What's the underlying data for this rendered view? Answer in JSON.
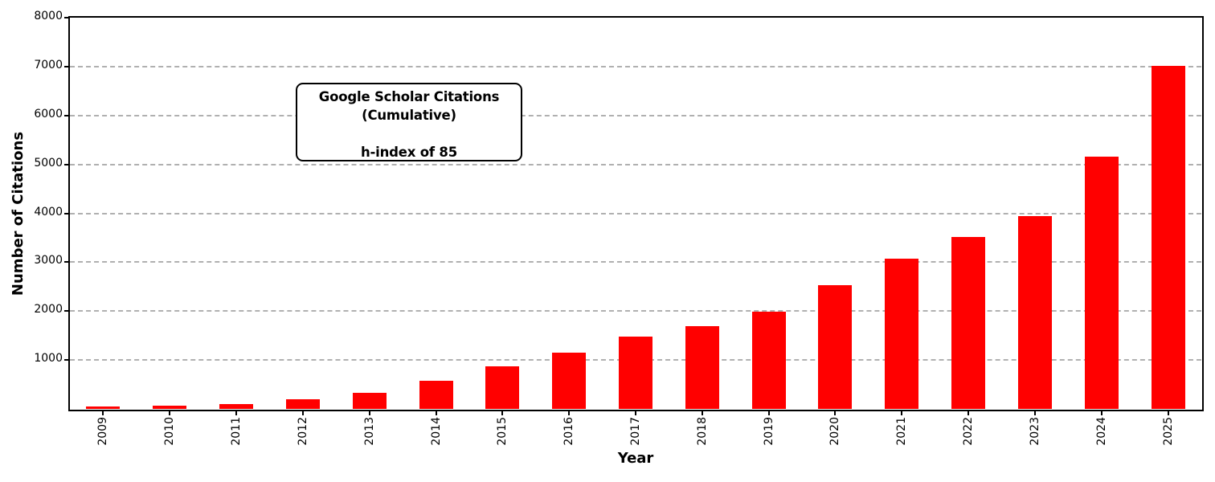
{
  "chart_data": {
    "type": "bar",
    "title": "",
    "xlabel": "Year",
    "ylabel": "Number of Citations",
    "categories": [
      "2009",
      "2010",
      "2011",
      "2012",
      "2013",
      "2014",
      "2015",
      "2016",
      "2017",
      "2018",
      "2019",
      "2020",
      "2021",
      "2022",
      "2023",
      "2024",
      "2025"
    ],
    "values": [
      45,
      70,
      105,
      190,
      335,
      570,
      865,
      1145,
      1480,
      1700,
      1985,
      2530,
      3080,
      3515,
      3950,
      5150,
      7010
    ],
    "series_name": "Cumulative Google Scholar citations",
    "ylim": [
      0,
      8000
    ],
    "ytick_step": 1000,
    "ytick_labels": [
      "1000",
      "2000",
      "3000",
      "4000",
      "5000",
      "6000",
      "7000",
      "8000"
    ],
    "grid": "horizontal dashed, on",
    "legend": "none",
    "bar_color": "#ff0000",
    "grid_color": "#b0b0b0",
    "annotation": {
      "lines": [
        "Google Scholar Citations",
        "(Cumulative)",
        "",
        "h-index of 85"
      ]
    }
  }
}
